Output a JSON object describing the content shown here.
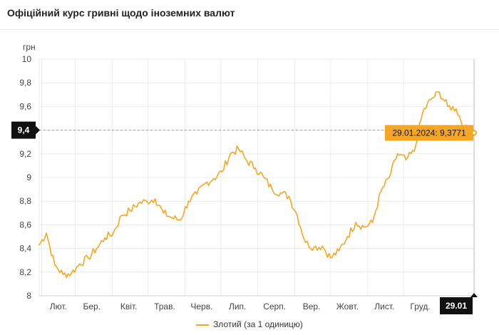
{
  "title": "Офіційний курс гривні щодо іноземних валют",
  "chart_data": {
    "type": "line",
    "title": "Офіційний курс гривні щодо іноземних валют",
    "ylabel": "грн",
    "xlabel": "",
    "ylim": [
      8,
      10
    ],
    "yticks": [
      "10",
      "9,8",
      "9,6",
      "9,4",
      "9,2",
      "9",
      "8,8",
      "8,6",
      "8,4",
      "8,2",
      "8"
    ],
    "xticks": [
      "Лют.",
      "Бер.",
      "Квіт.",
      "Трав.",
      "Черв.",
      "Лип.",
      "Серп.",
      "Вер.",
      "Жовт.",
      "Лист.",
      "Груд."
    ],
    "x_end_label": "29.01",
    "crosshair": {
      "label": "9,4",
      "value": 9.4
    },
    "tooltip": {
      "text": "29.01.2024: 9,3771",
      "date": "29.01.2024",
      "value": 9.3771
    },
    "grid": true,
    "legend_position": "bottom",
    "color": "#f5a623",
    "series": [
      {
        "name": "Злотий (за 1 одиницю)",
        "x": [
          "2023-01-30",
          "2023-02-05",
          "2023-02-12",
          "2023-02-19",
          "2023-02-26",
          "2023-03-05",
          "2023-03-12",
          "2023-03-19",
          "2023-03-26",
          "2023-04-02",
          "2023-04-09",
          "2023-04-16",
          "2023-04-23",
          "2023-04-30",
          "2023-05-07",
          "2023-05-14",
          "2023-05-21",
          "2023-05-28",
          "2023-06-04",
          "2023-06-11",
          "2023-06-18",
          "2023-06-25",
          "2023-07-02",
          "2023-07-09",
          "2023-07-16",
          "2023-07-23",
          "2023-07-30",
          "2023-08-06",
          "2023-08-13",
          "2023-08-20",
          "2023-08-27",
          "2023-09-03",
          "2023-09-10",
          "2023-09-17",
          "2023-09-24",
          "2023-10-01",
          "2023-10-08",
          "2023-10-15",
          "2023-10-22",
          "2023-10-29",
          "2023-11-05",
          "2023-11-12",
          "2023-11-19",
          "2023-11-26",
          "2023-12-03",
          "2023-12-10",
          "2023-12-17",
          "2023-12-24",
          "2023-12-31",
          "2024-01-07",
          "2024-01-14",
          "2024-01-21",
          "2024-01-29"
        ],
        "values": [
          8.43,
          8.53,
          8.26,
          8.18,
          8.19,
          8.27,
          8.32,
          8.4,
          8.49,
          8.53,
          8.68,
          8.72,
          8.78,
          8.8,
          8.82,
          8.7,
          8.66,
          8.64,
          8.8,
          8.86,
          8.95,
          8.99,
          9.05,
          9.2,
          9.24,
          9.14,
          9.08,
          9.0,
          8.9,
          8.87,
          8.84,
          8.68,
          8.45,
          8.41,
          8.42,
          8.32,
          8.38,
          8.5,
          8.62,
          8.58,
          8.62,
          8.88,
          9.0,
          9.2,
          9.15,
          9.22,
          9.55,
          9.66,
          9.72,
          9.6,
          9.58,
          9.42,
          9.3771
        ]
      }
    ]
  }
}
